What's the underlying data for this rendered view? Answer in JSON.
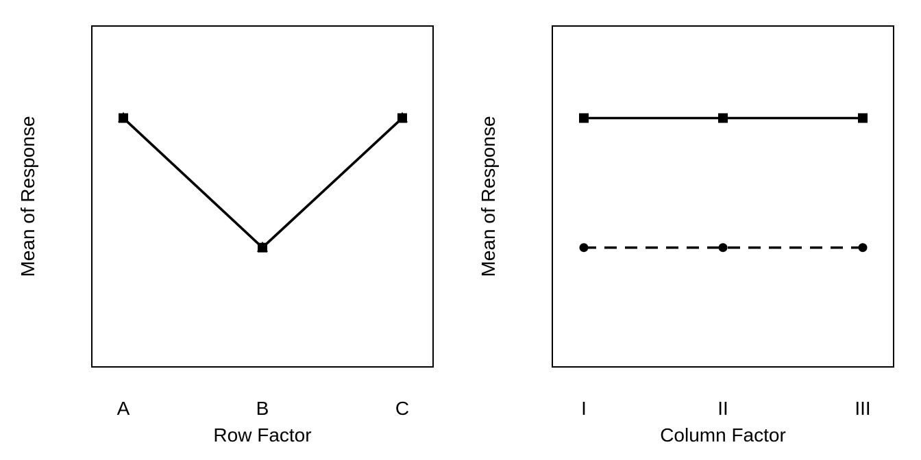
{
  "chart_data": [
    {
      "type": "line",
      "xlabel": "Row Factor",
      "ylabel": "Mean of Response",
      "categories": [
        "A",
        "B",
        "C"
      ],
      "ylim": [
        0,
        1
      ],
      "grid": false,
      "series": [
        {
          "style": "solid",
          "marker": "square",
          "values": [
            0.73,
            0.35,
            0.73
          ]
        },
        {
          "style": "solid",
          "marker": "triangle",
          "values": [
            0.73,
            0.35,
            0.73
          ]
        }
      ]
    },
    {
      "type": "line",
      "xlabel": "Column Factor",
      "ylabel": "Mean of Response",
      "categories": [
        "I",
        "II",
        "III"
      ],
      "ylim": [
        0,
        1
      ],
      "grid": false,
      "series": [
        {
          "style": "solid",
          "marker": "square",
          "values": [
            0.73,
            0.73,
            0.73
          ]
        },
        {
          "style": "dashed",
          "marker": "circle",
          "values": [
            0.35,
            0.35,
            0.35
          ]
        }
      ]
    }
  ]
}
